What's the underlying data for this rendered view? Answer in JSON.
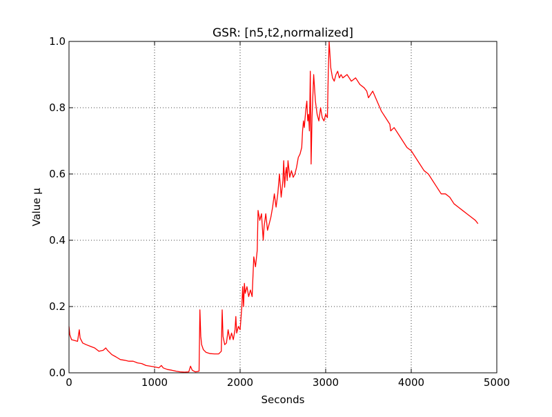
{
  "chart_data": {
    "type": "line",
    "title": "GSR: [n5,t2,normalized]",
    "xlabel": "Seconds",
    "ylabel": "Value µ",
    "xlim": [
      0,
      5000
    ],
    "ylim": [
      0.0,
      1.0
    ],
    "x_ticks": [
      0,
      1000,
      2000,
      3000,
      4000,
      5000
    ],
    "x_tick_labels": [
      "0",
      "1000",
      "2000",
      "3000",
      "4000",
      "5000"
    ],
    "y_ticks": [
      0.0,
      0.2,
      0.4,
      0.6,
      0.8,
      1.0
    ],
    "y_tick_labels": [
      "0.0",
      "0.2",
      "0.4",
      "0.6",
      "0.8",
      "1.0"
    ],
    "grid": true,
    "series": [
      {
        "color": "#ff0000",
        "x": [
          0,
          10,
          30,
          60,
          100,
          120,
          130,
          160,
          200,
          250,
          300,
          350,
          400,
          430,
          450,
          500,
          550,
          600,
          650,
          700,
          750,
          800,
          850,
          900,
          950,
          1000,
          1050,
          1080,
          1100,
          1150,
          1200,
          1250,
          1300,
          1350,
          1400,
          1420,
          1440,
          1460,
          1480,
          1500,
          1520,
          1530,
          1540,
          1550,
          1570,
          1600,
          1650,
          1700,
          1750,
          1780,
          1790,
          1800,
          1820,
          1840,
          1860,
          1880,
          1900,
          1920,
          1940,
          1950,
          1960,
          1980,
          2000,
          2020,
          2030,
          2040,
          2050,
          2060,
          2080,
          2100,
          2120,
          2140,
          2160,
          2180,
          2200,
          2210,
          2230,
          2250,
          2260,
          2270,
          2280,
          2300,
          2320,
          2340,
          2360,
          2380,
          2400,
          2420,
          2440,
          2460,
          2480,
          2500,
          2510,
          2520,
          2530,
          2540,
          2550,
          2560,
          2580,
          2600,
          2620,
          2640,
          2660,
          2680,
          2700,
          2720,
          2730,
          2740,
          2750,
          2760,
          2770,
          2780,
          2790,
          2800,
          2810,
          2815,
          2820,
          2830,
          2840,
          2860,
          2880,
          2900,
          2920,
          2940,
          2960,
          2980,
          3000,
          3020,
          3030,
          3040,
          3050,
          3060,
          3080,
          3100,
          3120,
          3140,
          3160,
          3180,
          3200,
          3250,
          3300,
          3350,
          3400,
          3450,
          3480,
          3500,
          3550,
          3600,
          3650,
          3700,
          3750,
          3760,
          3800,
          3850,
          3900,
          3950,
          4000,
          4050,
          4100,
          4150,
          4200,
          4250,
          4300,
          4350,
          4400,
          4450,
          4500,
          4550,
          4600,
          4650,
          4700,
          4750,
          4780
        ],
        "y": [
          0.14,
          0.115,
          0.1,
          0.098,
          0.095,
          0.13,
          0.105,
          0.09,
          0.085,
          0.08,
          0.075,
          0.065,
          0.068,
          0.075,
          0.068,
          0.055,
          0.048,
          0.04,
          0.038,
          0.035,
          0.035,
          0.03,
          0.028,
          0.022,
          0.02,
          0.018,
          0.015,
          0.022,
          0.015,
          0.01,
          0.008,
          0.005,
          0.003,
          0.002,
          0.003,
          0.02,
          0.008,
          0.005,
          0.003,
          0.004,
          0.005,
          0.19,
          0.11,
          0.085,
          0.07,
          0.062,
          0.058,
          0.057,
          0.057,
          0.065,
          0.19,
          0.11,
          0.085,
          0.09,
          0.13,
          0.1,
          0.12,
          0.1,
          0.13,
          0.17,
          0.12,
          0.14,
          0.13,
          0.2,
          0.26,
          0.2,
          0.27,
          0.24,
          0.26,
          0.23,
          0.25,
          0.23,
          0.35,
          0.32,
          0.37,
          0.49,
          0.46,
          0.48,
          0.44,
          0.4,
          0.44,
          0.48,
          0.43,
          0.45,
          0.47,
          0.5,
          0.54,
          0.5,
          0.54,
          0.6,
          0.53,
          0.58,
          0.64,
          0.56,
          0.6,
          0.62,
          0.58,
          0.64,
          0.59,
          0.61,
          0.59,
          0.6,
          0.62,
          0.65,
          0.66,
          0.68,
          0.73,
          0.76,
          0.74,
          0.77,
          0.8,
          0.82,
          0.76,
          0.78,
          0.73,
          0.82,
          0.91,
          0.63,
          0.77,
          0.9,
          0.82,
          0.78,
          0.76,
          0.8,
          0.77,
          0.76,
          0.78,
          0.77,
          0.9,
          1.0,
          0.96,
          0.92,
          0.89,
          0.88,
          0.9,
          0.91,
          0.89,
          0.9,
          0.89,
          0.9,
          0.88,
          0.89,
          0.87,
          0.86,
          0.85,
          0.83,
          0.85,
          0.82,
          0.79,
          0.77,
          0.75,
          0.73,
          0.74,
          0.72,
          0.7,
          0.68,
          0.67,
          0.65,
          0.63,
          0.61,
          0.6,
          0.58,
          0.56,
          0.54,
          0.54,
          0.53,
          0.51,
          0.5,
          0.49,
          0.48,
          0.47,
          0.46,
          0.45
        ]
      }
    ]
  }
}
